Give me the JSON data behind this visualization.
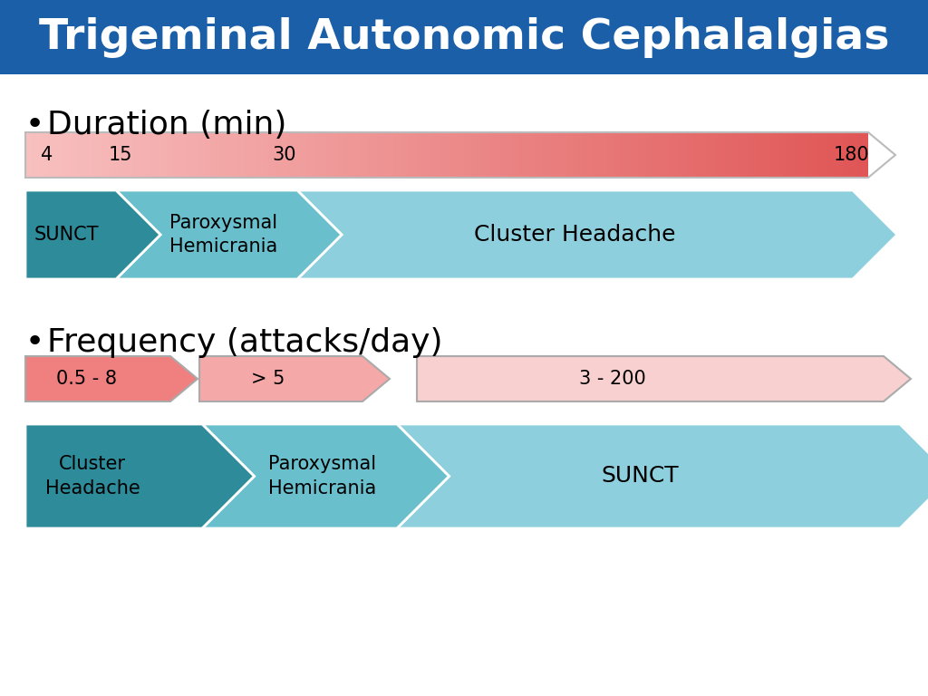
{
  "title": "Trigeminal Autonomic Cephalalgias",
  "title_bg": "#1a5fa8",
  "title_fg": "#ffffff",
  "bg_color": "#ffffff",
  "section1_label": "Duration (min)",
  "section2_label": "Frequency (attacks/day)",
  "duration_ticks": [
    "4",
    "15",
    "30",
    "180"
  ],
  "sunct_color": "#2e8b9a",
  "paroxysmal_color": "#6abfcc",
  "cluster_h_color": "#8ecfde",
  "freq_label1": "0.5 - 8",
  "freq_label2": "> 5",
  "freq_label3": "3 - 200",
  "cluster_h_freq_color": "#2e8b9a",
  "paroxysmal_freq_color": "#6abfcc",
  "sunct_freq_color": "#8ecfde",
  "arrow_border": "#b0b0b0"
}
